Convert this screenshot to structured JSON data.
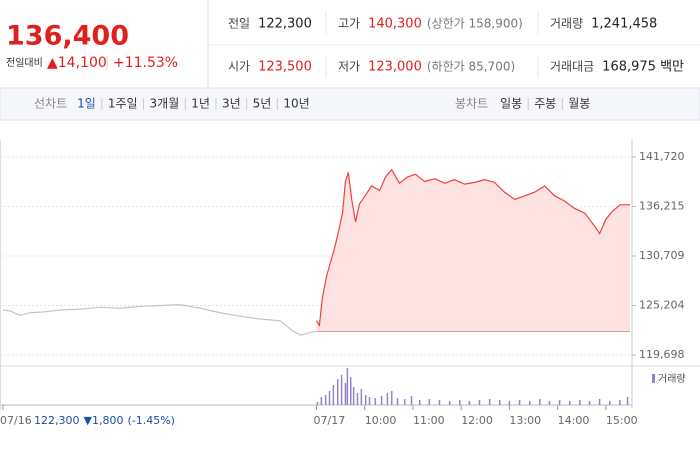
{
  "quote": {
    "price": "136,400",
    "change_label": "전일대비",
    "change": "▲14,100",
    "change_rate": "+11.53%"
  },
  "summary": {
    "rows": [
      [
        {
          "label": "전일",
          "value": "122,300",
          "color": "#222"
        },
        {
          "label": "고가",
          "value": "140,300",
          "note": "(상한가 158,900)",
          "color": "#e0201c"
        },
        {
          "label": "거래량",
          "value": "1,241,458",
          "color": "#222"
        }
      ],
      [
        {
          "label": "시가",
          "value": "123,500",
          "color": "#e0201c"
        },
        {
          "label": "저가",
          "value": "123,000",
          "note": "(하한가 85,700)",
          "color": "#e0201c"
        },
        {
          "label": "거래대금",
          "value": "168,975 백만",
          "color": "#222"
        }
      ]
    ]
  },
  "tabs": {
    "line_title": "선차트",
    "line_items": [
      "1일",
      "1주일",
      "3개월",
      "1년",
      "3년",
      "5년",
      "10년"
    ],
    "selected": 0,
    "candle_title": "봉차트",
    "candle_items": [
      "일봉",
      "주봉",
      "월봉"
    ]
  },
  "chart_data": [
    {
      "type": "line",
      "xlim": [
        9,
        15.5
      ],
      "xticks": [
        {
          "value": 10,
          "label": "10:00"
        },
        {
          "value": 11,
          "label": "11:00"
        },
        {
          "value": 12,
          "label": "12:00"
        },
        {
          "value": 13,
          "label": "13:00"
        },
        {
          "value": 14,
          "label": "14:00"
        },
        {
          "value": 15,
          "label": "15:00"
        }
      ],
      "ylim": [
        119698,
        141720
      ],
      "yticks": [
        {
          "value": 141720,
          "label": "141,720"
        },
        {
          "value": 136215,
          "label": "136,215"
        },
        {
          "value": 130709,
          "label": "130,709"
        },
        {
          "value": 125204,
          "label": "125,204"
        },
        {
          "value": 119698,
          "label": "119,698"
        }
      ],
      "grid": true,
      "prev_close": {
        "value": 122300,
        "label": "122,300"
      },
      "prev_change": "▼1,800",
      "prev_change_rate": "(-1.45%)",
      "series": [
        {
          "date": "07/16",
          "color": "#c4c4c4",
          "x": [
            9.0,
            9.15,
            9.35,
            9.56,
            9.87,
            10.18,
            10.6,
            11.01,
            11.43,
            11.84,
            12.26,
            12.67,
            13.09,
            13.5,
            13.92,
            14.33,
            14.75,
            15.0,
            15.16,
            15.37,
            15.49
          ],
          "values": [
            124700,
            124600,
            124100,
            124400,
            124500,
            124700,
            124800,
            125000,
            124900,
            125100,
            125200,
            125300,
            124900,
            124400,
            124000,
            123700,
            123500,
            122400,
            121900,
            122200,
            122300
          ]
        },
        {
          "date": "07/17",
          "color": "#f0403a",
          "fill_color": "#fde2e2",
          "x": [
            9.0,
            9.06,
            9.12,
            9.21,
            9.29,
            9.37,
            9.46,
            9.54,
            9.6,
            9.66,
            9.73,
            9.81,
            9.89,
            10.02,
            10.14,
            10.31,
            10.43,
            10.56,
            10.72,
            10.89,
            11.05,
            11.24,
            11.45,
            11.66,
            11.86,
            12.07,
            12.28,
            12.49,
            12.69,
            12.9,
            13.11,
            13.32,
            13.52,
            13.73,
            13.94,
            14.15,
            14.35,
            14.56,
            14.77,
            14.87,
            15.0,
            15.12,
            15.29,
            15.5
          ],
          "values": [
            123500,
            123000,
            126000,
            128500,
            130000,
            131500,
            133500,
            135500,
            139000,
            140000,
            137000,
            134500,
            136500,
            137500,
            138500,
            138000,
            139500,
            140300,
            138800,
            139500,
            139800,
            139000,
            139300,
            138800,
            139200,
            138700,
            138900,
            139200,
            138900,
            137800,
            137000,
            137400,
            137800,
            138500,
            137400,
            136800,
            136000,
            135500,
            134000,
            133200,
            134800,
            135600,
            136400,
            136400
          ]
        }
      ]
    },
    {
      "type": "bar",
      "ylim": [
        0,
        60000
      ],
      "series": [
        {
          "name": "거래량",
          "color": "#9384c9",
          "x": [
            9.02,
            9.1,
            9.19,
            9.27,
            9.35,
            9.44,
            9.52,
            9.6,
            9.64,
            9.71,
            9.77,
            9.85,
            9.93,
            10.02,
            10.1,
            10.22,
            10.35,
            10.47,
            10.56,
            10.68,
            10.83,
            10.97,
            11.14,
            11.34,
            11.55,
            11.76,
            11.97,
            12.17,
            12.38,
            12.59,
            12.8,
            13.0,
            13.21,
            13.42,
            13.63,
            13.83,
            14.04,
            14.25,
            14.46,
            14.66,
            14.87,
            15.08,
            15.29,
            15.45
          ],
          "values": [
            4700,
            12600,
            15800,
            22100,
            31600,
            41000,
            47400,
            34700,
            58400,
            44200,
            28400,
            18900,
            25300,
            15800,
            12600,
            11000,
            14200,
            18900,
            22100,
            11000,
            9500,
            14200,
            7900,
            9500,
            7900,
            6300,
            7900,
            6300,
            7900,
            9500,
            7900,
            6300,
            7900,
            6300,
            9500,
            6300,
            7900,
            6300,
            7900,
            6300,
            9500,
            6300,
            7900,
            12600
          ]
        }
      ]
    }
  ]
}
